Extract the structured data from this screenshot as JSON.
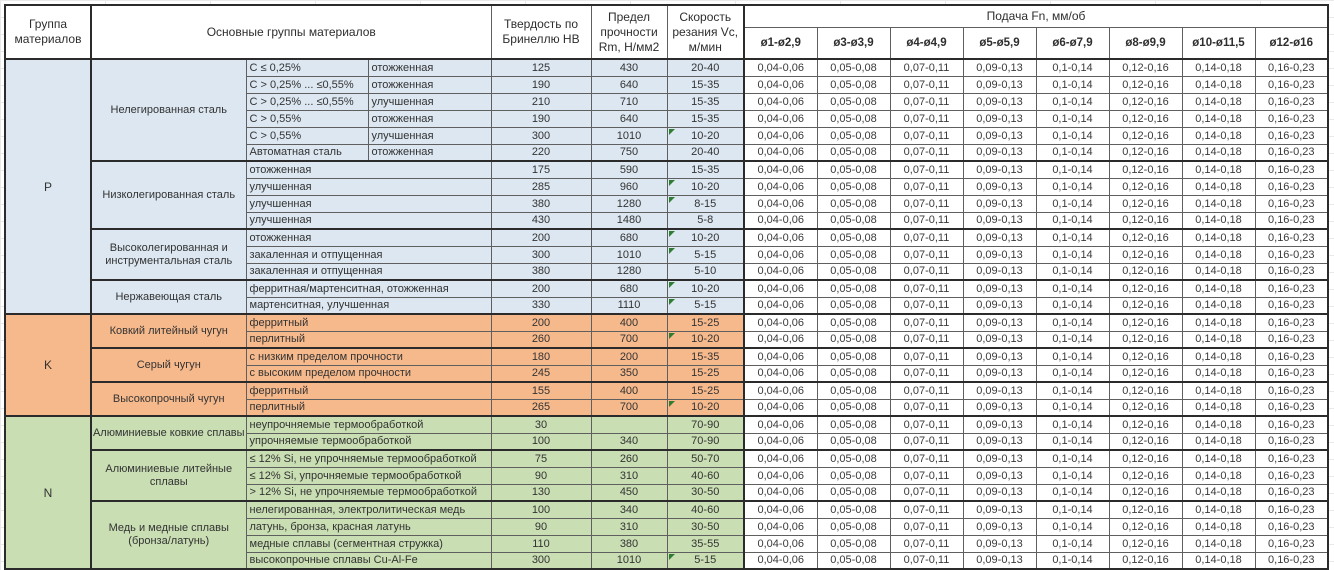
{
  "header": {
    "col_group": "Группа материалов",
    "col_main": "Основные группы материалов",
    "col_hardness": "Твердость по Бринеллю HB",
    "col_strength": "Предел прочности Rm, Н/мм2",
    "col_speed": "Скорость резания Vc, м/мин",
    "col_feed": "Подача Fn, мм/об",
    "feed_diameters": [
      "ø1-ø2,9",
      "ø3-ø3,9",
      "ø4-ø4,9",
      "ø5-ø5,9",
      "ø6-ø7,9",
      "ø8-ø9,9",
      "ø10-ø11,5",
      "ø12-ø16"
    ]
  },
  "feed_values": [
    "0,04-0,06",
    "0,05-0,08",
    "0,07-0,11",
    "0,09-0,13",
    "0,1-0,14",
    "0,12-0,16",
    "0,14-0,18",
    "0,16-0,23"
  ],
  "colors": {
    "group_p": "#DCE7F1",
    "group_k": "#F6B98C",
    "group_n": "#C9DEB3",
    "flag": "#2E7D32",
    "border_thick": "#2b2b2b",
    "border_thin": "#5f5f5f"
  },
  "groups": [
    {
      "letter": "P",
      "color": "#DCE7F1",
      "subgroups": [
        {
          "name": "Нелегированная сталь",
          "rows": [
            {
              "c1": "C ≤ 0,25%",
              "c2": "отожженная",
              "hb": "125",
              "rm": "430",
              "vc": "20-40",
              "flag": false
            },
            {
              "c1": "C > 0,25% ... ≤0,55%",
              "c2": "отожженная",
              "hb": "190",
              "rm": "640",
              "vc": "15-35",
              "flag": false
            },
            {
              "c1": "C > 0,25% ... ≤0,55%",
              "c2": "улучшенная",
              "hb": "210",
              "rm": "710",
              "vc": "15-35",
              "flag": false
            },
            {
              "c1": "C > 0,55%",
              "c2": "отожженная",
              "hb": "190",
              "rm": "640",
              "vc": "15-35",
              "flag": false
            },
            {
              "c1": "C > 0,55%",
              "c2": "улучшенная",
              "hb": "300",
              "rm": "1010",
              "vc": "10-20",
              "flag": true
            },
            {
              "c1": "Автоматная сталь",
              "c2": "отожженная",
              "hb": "220",
              "rm": "750",
              "vc": "20-40",
              "flag": false
            }
          ]
        },
        {
          "name": "Низколегированная сталь",
          "rows": [
            {
              "desc": "отожженная",
              "hb": "175",
              "rm": "590",
              "vc": "15-35",
              "flag": false
            },
            {
              "desc": "улучшенная",
              "hb": "285",
              "rm": "960",
              "vc": "10-20",
              "flag": true
            },
            {
              "desc": "улучшенная",
              "hb": "380",
              "rm": "1280",
              "vc": "8-15",
              "flag": true
            },
            {
              "desc": "улучшенная",
              "hb": "430",
              "rm": "1480",
              "vc": "5-8",
              "flag": false
            }
          ]
        },
        {
          "name": "Высоколегированная и инструментальная сталь",
          "rows": [
            {
              "desc": "отожженная",
              "hb": "200",
              "rm": "680",
              "vc": "10-20",
              "flag": true
            },
            {
              "desc": "закаленная и отпущенная",
              "hb": "300",
              "rm": "1010",
              "vc": "5-15",
              "flag": true
            },
            {
              "desc": "закаленная и отпущенная",
              "hb": "380",
              "rm": "1280",
              "vc": "5-10",
              "flag": false
            }
          ]
        },
        {
          "name": "Нержавеющая сталь",
          "rows": [
            {
              "desc": "ферритная/мартенситная, отожженная",
              "hb": "200",
              "rm": "680",
              "vc": "10-20",
              "flag": true
            },
            {
              "desc": "мартенситная, улучшенная",
              "hb": "330",
              "rm": "1110",
              "vc": "5-15",
              "flag": true
            }
          ]
        }
      ]
    },
    {
      "letter": "K",
      "color": "#F6B98C",
      "subgroups": [
        {
          "name": "Ковкий литейный чугун",
          "rows": [
            {
              "desc": "ферритный",
              "hb": "200",
              "rm": "400",
              "vc": "15-25",
              "flag": false
            },
            {
              "desc": "перлитный",
              "hb": "260",
              "rm": "700",
              "vc": "10-20",
              "flag": true
            }
          ]
        },
        {
          "name": "Серый чугун",
          "rows": [
            {
              "desc": "с низким пределом прочности",
              "hb": "180",
              "rm": "200",
              "vc": "15-35",
              "flag": false
            },
            {
              "desc": "с высоким пределом прочности",
              "hb": "245",
              "rm": "350",
              "vc": "15-25",
              "flag": false
            }
          ]
        },
        {
          "name": "Высокопрочный чугун",
          "rows": [
            {
              "desc": "ферритный",
              "hb": "155",
              "rm": "400",
              "vc": "15-25",
              "flag": false
            },
            {
              "desc": "перлитный",
              "hb": "265",
              "rm": "700",
              "vc": "10-20",
              "flag": true
            }
          ]
        }
      ]
    },
    {
      "letter": "N",
      "color": "#C9DEB3",
      "subgroups": [
        {
          "name": "Алюминиевые ковкие сплавы",
          "rows": [
            {
              "desc": "неупрочняемые термообработкой",
              "hb": "30",
              "rm": "",
              "vc": "70-90",
              "flag": false
            },
            {
              "desc": "упрочняемые термообработкой",
              "hb": "100",
              "rm": "340",
              "vc": "70-90",
              "flag": false
            }
          ]
        },
        {
          "name": "Алюминиевые литейные сплавы",
          "rows": [
            {
              "desc": "≤ 12% Si, не упрочняемые термообработкой",
              "hb": "75",
              "rm": "260",
              "vc": "50-70",
              "flag": false
            },
            {
              "desc": "≤ 12% Si, упрочняемые термообработкой",
              "hb": "90",
              "rm": "310",
              "vc": "40-60",
              "flag": false
            },
            {
              "desc": "> 12% Si, не упрочняемые термообработкой",
              "hb": "130",
              "rm": "450",
              "vc": "30-50",
              "flag": false
            }
          ]
        },
        {
          "name": "Медь и медные сплавы (бронза/латунь)",
          "rows": [
            {
              "desc": "нелегированная, электролитическая медь",
              "hb": "100",
              "rm": "340",
              "vc": "40-60",
              "flag": false
            },
            {
              "desc": "латунь, бронза, красная латунь",
              "hb": "90",
              "rm": "310",
              "vc": "30-50",
              "flag": false
            },
            {
              "desc": "медные сплавы (сегментная стружка)",
              "hb": "110",
              "rm": "380",
              "vc": "35-55",
              "flag": false
            },
            {
              "desc": "высокопрочные сплавы Cu-Al-Fe",
              "hb": "300",
              "rm": "1010",
              "vc": "5-15",
              "flag": true
            }
          ]
        }
      ]
    }
  ]
}
